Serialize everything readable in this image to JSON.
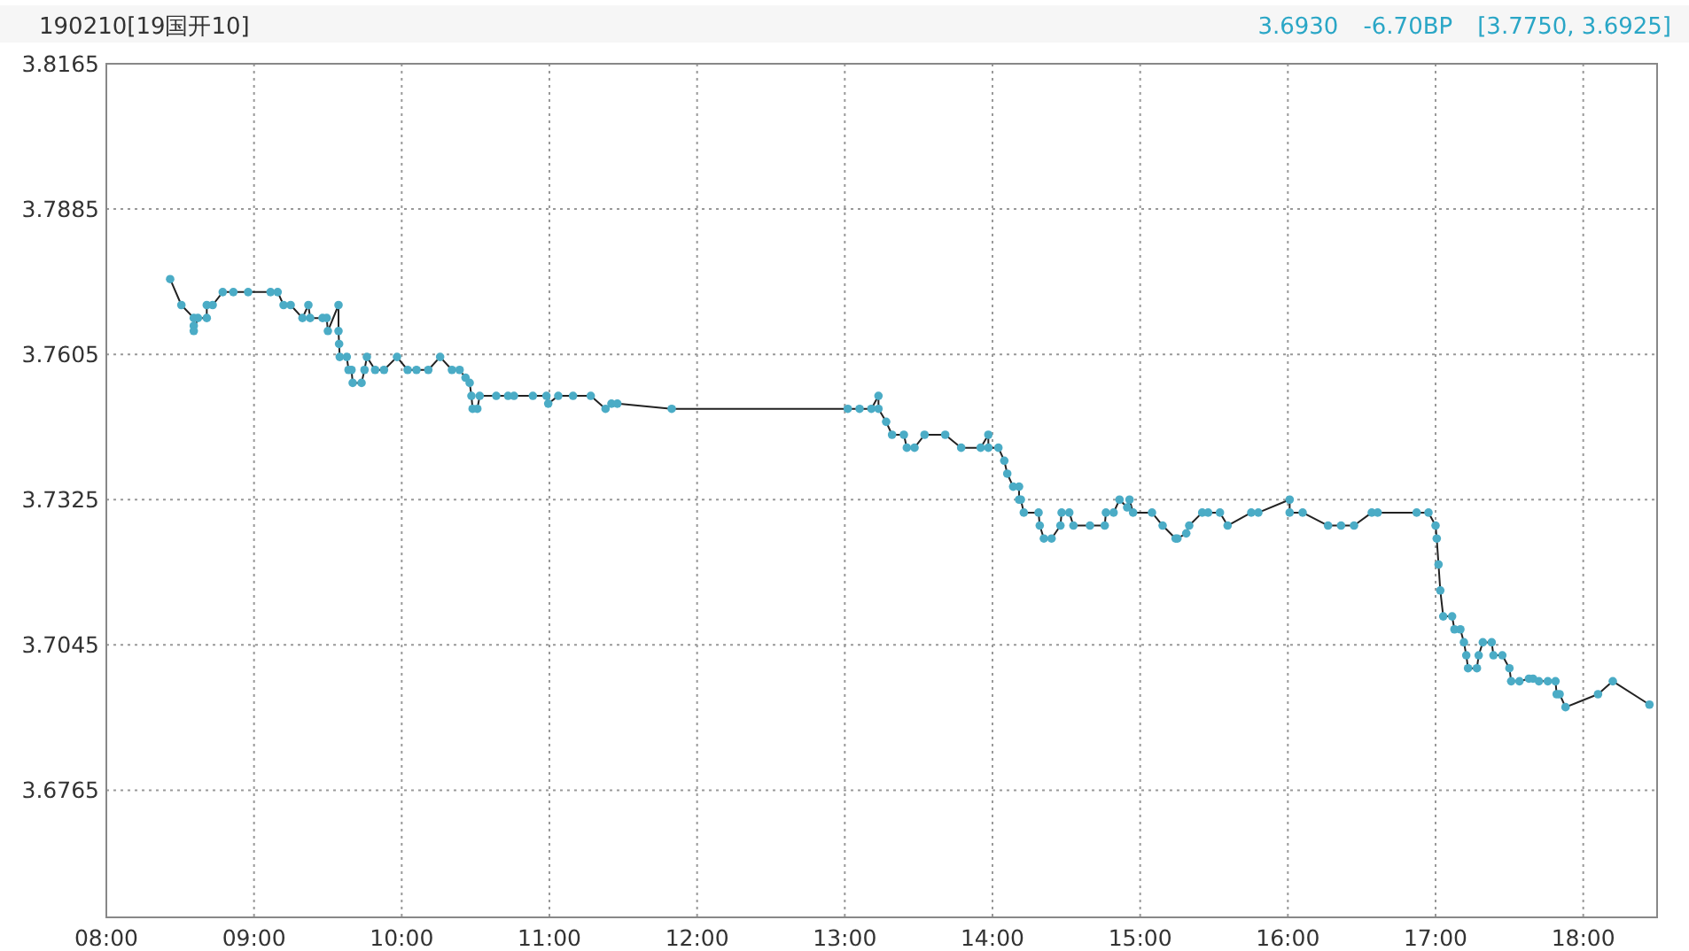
{
  "chart_data": {
    "type": "line",
    "title": "190210[19国开10]",
    "annotations": [
      "3.6930",
      "-6.70BP",
      "[3.7750, 3.6925]"
    ],
    "x": [
      8.432,
      8.508,
      8.592,
      8.592,
      8.592,
      8.62,
      8.68,
      8.68,
      8.72,
      8.788,
      8.86,
      8.96,
      9.112,
      9.16,
      9.2,
      9.248,
      9.328,
      9.368,
      9.38,
      9.464,
      9.492,
      9.5,
      9.572,
      9.572,
      9.576,
      9.58,
      9.628,
      9.64,
      9.66,
      9.668,
      9.728,
      9.748,
      9.764,
      9.82,
      9.88,
      9.968,
      10.04,
      10.1,
      10.18,
      10.26,
      10.34,
      10.392,
      10.432,
      10.46,
      10.472,
      10.48,
      10.512,
      10.528,
      10.64,
      10.72,
      10.76,
      10.888,
      10.98,
      10.992,
      11.06,
      11.16,
      11.28,
      11.38,
      11.42,
      11.46,
      11.828,
      13.02,
      13.1,
      13.18,
      13.228,
      13.228,
      13.28,
      13.32,
      13.4,
      13.42,
      13.472,
      13.54,
      13.68,
      13.788,
      13.92,
      13.972,
      13.972,
      14.04,
      14.08,
      14.1,
      14.14,
      14.18,
      14.18,
      14.192,
      14.212,
      14.312,
      14.32,
      14.348,
      14.4,
      14.46,
      14.468,
      14.52,
      14.548,
      14.66,
      14.76,
      14.768,
      14.82,
      14.86,
      14.912,
      14.928,
      14.952,
      15.08,
      15.152,
      15.24,
      15.252,
      15.312,
      15.332,
      15.42,
      15.46,
      15.54,
      15.592,
      15.752,
      15.8,
      16.012,
      16.012,
      16.1,
      16.272,
      16.36,
      16.448,
      16.568,
      16.608,
      16.872,
      16.952,
      17.0,
      17.008,
      17.02,
      17.032,
      17.052,
      17.112,
      17.128,
      17.168,
      17.192,
      17.208,
      17.22,
      17.28,
      17.292,
      17.32,
      17.38,
      17.392,
      17.452,
      17.5,
      17.512,
      17.568,
      17.632,
      17.66,
      17.7,
      17.76,
      17.812,
      17.82,
      17.84,
      17.88,
      18.1,
      18.2,
      18.448
    ],
    "series": [
      {
        "color": "#4bacc6",
        "values": [
          3.775,
          3.77,
          3.7675,
          3.766,
          3.765,
          3.7675,
          3.7675,
          3.77,
          3.77,
          3.7725,
          3.7725,
          3.7725,
          3.7725,
          3.7725,
          3.77,
          3.77,
          3.7675,
          3.77,
          3.7675,
          3.7675,
          3.7675,
          3.765,
          3.77,
          3.765,
          3.7625,
          3.76,
          3.76,
          3.7575,
          3.7575,
          3.755,
          3.755,
          3.7575,
          3.76,
          3.7575,
          3.7575,
          3.76,
          3.7575,
          3.7575,
          3.7575,
          3.76,
          3.7575,
          3.7575,
          3.756,
          3.755,
          3.7525,
          3.75,
          3.75,
          3.7525,
          3.7525,
          3.7525,
          3.7525,
          3.7525,
          3.7525,
          3.751,
          3.7525,
          3.7525,
          3.7525,
          3.75,
          3.751,
          3.751,
          3.75,
          3.75,
          3.75,
          3.75,
          3.7525,
          3.75,
          3.7475,
          3.745,
          3.745,
          3.7425,
          3.7425,
          3.745,
          3.745,
          3.7425,
          3.7425,
          3.745,
          3.7425,
          3.7425,
          3.74,
          3.7375,
          3.735,
          3.735,
          3.7325,
          3.7325,
          3.73,
          3.73,
          3.7275,
          3.725,
          3.725,
          3.7275,
          3.73,
          3.73,
          3.7275,
          3.7275,
          3.7275,
          3.73,
          3.73,
          3.7325,
          3.731,
          3.7325,
          3.73,
          3.73,
          3.7275,
          3.725,
          3.725,
          3.726,
          3.7275,
          3.73,
          3.73,
          3.73,
          3.7275,
          3.73,
          3.73,
          3.7325,
          3.73,
          3.73,
          3.7275,
          3.7275,
          3.7275,
          3.73,
          3.73,
          3.73,
          3.73,
          3.7275,
          3.725,
          3.72,
          3.715,
          3.71,
          3.71,
          3.7075,
          3.7075,
          3.705,
          3.7025,
          3.7,
          3.7,
          3.7025,
          3.705,
          3.705,
          3.7025,
          3.7025,
          3.7,
          3.6975,
          3.6975,
          3.698,
          3.698,
          3.6975,
          3.6975,
          3.6975,
          3.695,
          3.695,
          3.6925,
          3.695,
          3.6975,
          3.693
        ]
      }
    ],
    "xlim": [
      8,
      18.5
    ],
    "xticks": [
      {
        "value": 8,
        "label": "08:00"
      },
      {
        "value": 9,
        "label": "09:00"
      },
      {
        "value": 10,
        "label": "10:00"
      },
      {
        "value": 11,
        "label": "11:00"
      },
      {
        "value": 12,
        "label": "12:00"
      },
      {
        "value": 13,
        "label": "13:00"
      },
      {
        "value": 14,
        "label": "14:00"
      },
      {
        "value": 15,
        "label": "15:00"
      },
      {
        "value": 16,
        "label": "16:00"
      },
      {
        "value": 17,
        "label": "17:00"
      },
      {
        "value": 18,
        "label": "18:00"
      }
    ],
    "ylim": [
      3.652,
      3.8165
    ],
    "yticks": [
      3.8165,
      3.7885,
      3.7605,
      3.7325,
      3.7045,
      3.6765
    ],
    "grid": true,
    "marker": "circle",
    "line_style": "solid"
  }
}
